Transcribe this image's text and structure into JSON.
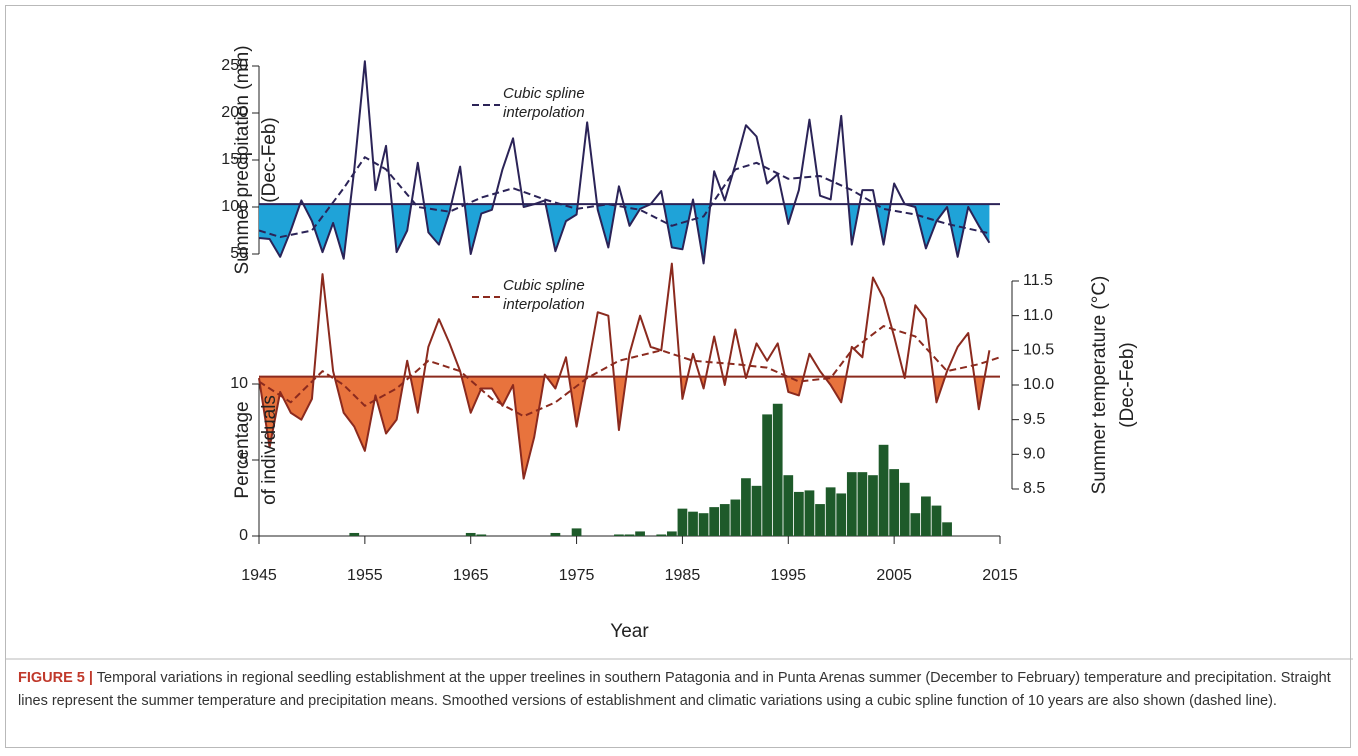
{
  "chart_data": [
    {
      "type": "line",
      "ylabel": [
        "Summer precipitation (mm)",
        "(Dec-Feb)"
      ],
      "xlim": [
        1945,
        2015
      ],
      "ylim": [
        50,
        250
      ],
      "yticks": [
        50,
        100,
        150,
        200,
        250
      ],
      "mean": 103,
      "x": [
        1945,
        1946,
        1947,
        1948,
        1949,
        1950,
        1951,
        1952,
        1953,
        1954,
        1955,
        1956,
        1957,
        1958,
        1959,
        1960,
        1961,
        1962,
        1963,
        1964,
        1965,
        1966,
        1967,
        1968,
        1969,
        1970,
        1971,
        1972,
        1973,
        1974,
        1975,
        1976,
        1977,
        1978,
        1979,
        1980,
        1981,
        1982,
        1983,
        1984,
        1985,
        1986,
        1987,
        1988,
        1989,
        1990,
        1991,
        1992,
        1993,
        1994,
        1995,
        1996,
        1997,
        1998,
        1999,
        2000,
        2001,
        2002,
        2003,
        2004,
        2005,
        2006,
        2007,
        2008,
        2009,
        2010,
        2011,
        2012,
        2013,
        2014
      ],
      "series": [
        {
          "color": "#2b2357",
          "fill": "#1fa3d8",
          "values": [
            67,
            66,
            47,
            75,
            107,
            85,
            52,
            83,
            45,
            140,
            255,
            118,
            165,
            52,
            75,
            147,
            73,
            60,
            95,
            143,
            50,
            93,
            97,
            140,
            173,
            100,
            103,
            107,
            53,
            85,
            92,
            190,
            97,
            57,
            122,
            80,
            98,
            103,
            117,
            57,
            55,
            108,
            40,
            138,
            107,
            145,
            187,
            175,
            125,
            135,
            82,
            118,
            193,
            112,
            108,
            197,
            60,
            118,
            118,
            60,
            125,
            103,
            100,
            56,
            85,
            100,
            47,
            100,
            80,
            62
          ]
        },
        {
          "name": "Cubic spline interpolation",
          "color": "#2b2357",
          "dashed": true,
          "x": [
            1945,
            1947,
            1950,
            1953,
            1955,
            1957,
            1960,
            1963,
            1966,
            1969,
            1972,
            1975,
            1978,
            1981,
            1984,
            1987,
            1990,
            1992,
            1995,
            1998,
            2001,
            2004,
            2007,
            2010,
            2014
          ],
          "values": [
            75,
            68,
            75,
            120,
            153,
            140,
            100,
            95,
            110,
            120,
            108,
            98,
            103,
            97,
            80,
            90,
            140,
            147,
            130,
            133,
            118,
            98,
            92,
            82,
            72
          ]
        }
      ]
    },
    {
      "type": "line",
      "y2label": [
        "Summer temperature (°C)",
        "(Dec-Feb)"
      ],
      "xlim": [
        1945,
        2015
      ],
      "y2lim": [
        8.5,
        11.5
      ],
      "y2ticks": [
        8.5,
        {
          "value": 9,
          "label": "9.0"
        },
        9.5,
        {
          "value": 10,
          "label": "10.0"
        },
        10.5,
        {
          "value": 11,
          "label": "11.0"
        },
        11.5
      ],
      "mean": 10.12,
      "x": [
        1945,
        1946,
        1947,
        1948,
        1949,
        1950,
        1951,
        1952,
        1953,
        1954,
        1955,
        1956,
        1957,
        1958,
        1959,
        1960,
        1961,
        1962,
        1963,
        1964,
        1965,
        1966,
        1967,
        1968,
        1969,
        1970,
        1971,
        1972,
        1973,
        1974,
        1975,
        1976,
        1977,
        1978,
        1979,
        1980,
        1981,
        1982,
        1983,
        1984,
        1985,
        1986,
        1987,
        1988,
        1989,
        1990,
        1991,
        1992,
        1993,
        1994,
        1995,
        1996,
        1997,
        1998,
        1999,
        2000,
        2001,
        2002,
        2003,
        2004,
        2005,
        2006,
        2007,
        2008,
        2009,
        2010,
        2011,
        2012,
        2013,
        2014
      ],
      "series": [
        {
          "color": "#8b2a1e",
          "fill": "#e8733d",
          "axis": "y2",
          "values": [
            10.1,
            9.1,
            9.9,
            9.6,
            9.5,
            9.8,
            11.6,
            10.2,
            9.6,
            9.4,
            9.05,
            9.85,
            9.3,
            9.5,
            10.35,
            9.6,
            10.55,
            10.95,
            10.6,
            10.2,
            9.6,
            9.95,
            9.95,
            9.7,
            10.0,
            8.65,
            9.25,
            10.15,
            9.95,
            10.4,
            9.4,
            10.2,
            11.05,
            11.0,
            9.35,
            10.45,
            11.0,
            10.55,
            10.5,
            11.75,
            9.8,
            10.45,
            9.95,
            10.7,
            10.0,
            10.8,
            10.1,
            10.6,
            10.35,
            10.6,
            9.9,
            9.85,
            10.45,
            10.2,
            10.0,
            9.75,
            10.55,
            10.4,
            11.55,
            11.25,
            10.7,
            10.1,
            11.15,
            10.95,
            9.75,
            10.2,
            10.55,
            10.75,
            9.65,
            10.5
          ]
        },
        {
          "name": "Cubic spline interpolation",
          "color": "#8b2a1e",
          "dashed": true,
          "axis": "y2",
          "x": [
            1945,
            1948,
            1951,
            1953,
            1955,
            1958,
            1961,
            1964,
            1967,
            1970,
            1973,
            1976,
            1979,
            1983,
            1986,
            1990,
            1993,
            1996,
            1999,
            2001,
            2004,
            2007,
            2010,
            2013,
            2015
          ],
          "values": [
            10.05,
            9.75,
            10.2,
            10.0,
            9.7,
            9.95,
            10.35,
            10.2,
            9.8,
            9.55,
            9.75,
            10.1,
            10.35,
            10.5,
            10.35,
            10.3,
            10.25,
            10.05,
            10.1,
            10.5,
            10.85,
            10.7,
            10.2,
            10.3,
            10.4
          ]
        }
      ]
    },
    {
      "type": "bar",
      "ylabel": [
        "Percentage",
        "of individuals"
      ],
      "xlabel": "Year",
      "xlim": [
        1945,
        2015
      ],
      "xticks": [
        1945,
        1955,
        1965,
        1975,
        1985,
        1995,
        2005,
        2015
      ],
      "ylim": [
        0,
        10
      ],
      "yticks": [
        0,
        5,
        10
      ],
      "color": "#1e5a2a",
      "x": [
        1954,
        1965,
        1966,
        1973,
        1975,
        1979,
        1980,
        1981,
        1983,
        1984,
        1985,
        1986,
        1987,
        1988,
        1989,
        1990,
        1991,
        1992,
        1993,
        1994,
        1995,
        1996,
        1997,
        1998,
        1999,
        2000,
        2001,
        2002,
        2003,
        2004,
        2005,
        2006,
        2007,
        2008,
        2009,
        2010
      ],
      "values": [
        0.2,
        0.2,
        0.1,
        0.2,
        0.5,
        0.1,
        0.1,
        0.3,
        0.1,
        0.3,
        1.8,
        1.6,
        1.5,
        1.9,
        2.1,
        2.4,
        3.8,
        3.3,
        8.0,
        8.7,
        4.0,
        2.9,
        3.0,
        2.1,
        3.2,
        2.8,
        4.2,
        4.2,
        4.0,
        6.0,
        4.4,
        3.5,
        1.5,
        2.6,
        2.0,
        0.9
      ]
    }
  ],
  "caption": {
    "label": "FIGURE 5 |",
    "text": "Temporal variations in regional seedling establishment at the upper treelines in southern Patagonia and in Punta Arenas summer (December to February) temperature and precipitation. Straight lines represent the summer temperature and precipitation means. Smoothed versions of establishment and climatic variations using a cubic spline function of 10 years are also shown (dashed line)."
  }
}
